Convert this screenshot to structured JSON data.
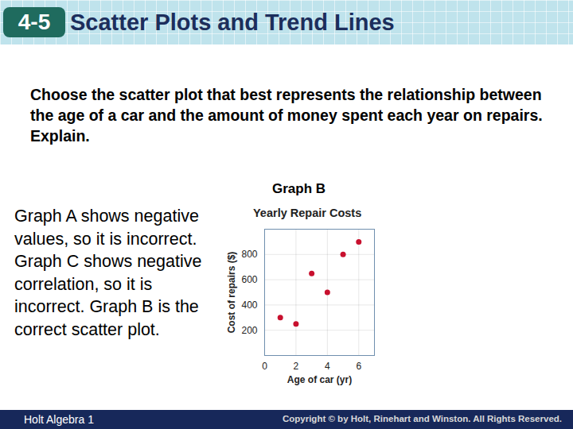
{
  "header": {
    "lesson": "4-5",
    "title": "Scatter Plots and Trend Lines"
  },
  "question": "Choose the scatter plot that best represents the relationship between the age of a car and the amount of money spent each year on repairs. Explain.",
  "graph_label": "Graph B",
  "explanation": "Graph A shows negative values, so it is incorrect. Graph C shows negative correlation, so it is incorrect. Graph B is the correct scatter plot.",
  "chart_data": {
    "type": "scatter",
    "title": "Yearly Repair Costs",
    "x": [
      1,
      2,
      3,
      4,
      5,
      6
    ],
    "values": [
      300,
      250,
      650,
      500,
      800,
      900
    ],
    "x_label": "Age of car (yr)",
    "y_label": "Cost of repairs ($)",
    "xlim": [
      0,
      7
    ],
    "ylim": [
      0,
      1000
    ],
    "xticks": [
      0,
      2,
      4,
      6
    ],
    "yticks": [
      200,
      400,
      600,
      800
    ],
    "grid": true,
    "color": "#c8102e",
    "marker": "circle"
  },
  "footer": {
    "left": "Holt Algebra 1",
    "right": "Copyright © by Holt, Rinehart and Winston. All Rights Reserved."
  }
}
